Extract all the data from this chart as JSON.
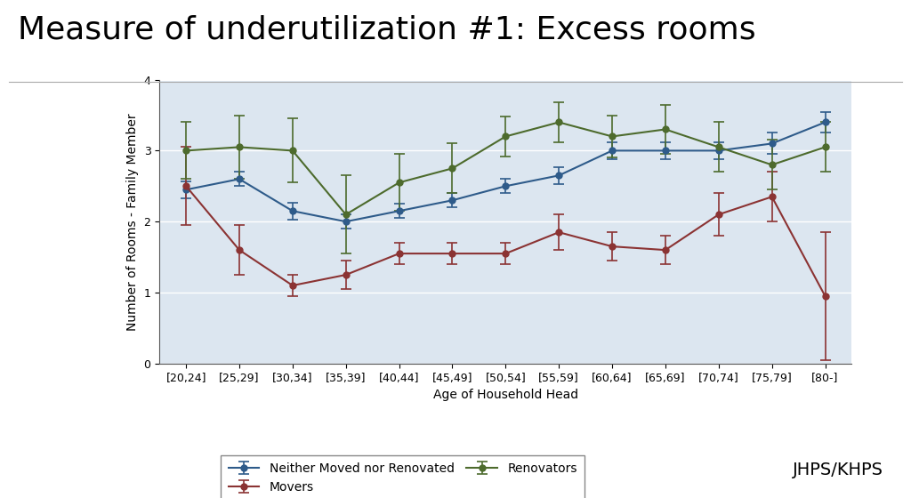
{
  "title": "Measure of underutilization #1: Excess rooms",
  "xlabel": "Age of Household Head",
  "ylabel": "Number of Rooms - Family Member",
  "categories": [
    "[20,24]",
    "[25,29]",
    "[30,34]",
    "[35,39]",
    "[40,44]",
    "[45,49]",
    "[50,54]",
    "[55,59]",
    "[60,64]",
    "[65,69]",
    "[70,74]",
    "[75,79]",
    "[80-]"
  ],
  "ylim": [
    0,
    4
  ],
  "yticks": [
    0,
    1,
    2,
    3,
    4
  ],
  "series": {
    "neither": {
      "label": "Neither Moved nor Renovated",
      "color": "#2e5b8a",
      "y": [
        2.45,
        2.6,
        2.15,
        2.0,
        2.15,
        2.3,
        2.5,
        2.65,
        3.0,
        3.0,
        3.0,
        3.1,
        3.4
      ],
      "yerr": [
        0.12,
        0.1,
        0.12,
        0.1,
        0.1,
        0.1,
        0.1,
        0.12,
        0.12,
        0.12,
        0.12,
        0.15,
        0.15
      ],
      "marker": "o"
    },
    "movers": {
      "label": "Movers",
      "color": "#8b3333",
      "y": [
        2.5,
        1.6,
        1.1,
        1.25,
        1.55,
        1.55,
        1.55,
        1.85,
        1.65,
        1.6,
        2.1,
        2.35,
        0.95
      ],
      "yerr": [
        0.55,
        0.35,
        0.15,
        0.2,
        0.15,
        0.15,
        0.15,
        0.25,
        0.2,
        0.2,
        0.3,
        0.35,
        0.9
      ],
      "marker": "o"
    },
    "renovators": {
      "label": "Renovators",
      "color": "#4d6b2d",
      "y": [
        3.0,
        3.05,
        3.0,
        2.1,
        2.55,
        2.75,
        3.2,
        3.4,
        3.2,
        3.3,
        3.05,
        2.8,
        3.05
      ],
      "yerr": [
        0.4,
        0.45,
        0.45,
        0.55,
        0.4,
        0.35,
        0.28,
        0.28,
        0.3,
        0.35,
        0.35,
        0.35,
        0.35
      ],
      "marker": "o"
    }
  },
  "fig_bg_color": "#ffffff",
  "plot_bg_color": "#dce6f0",
  "title_fontsize": 26,
  "axis_fontsize": 10,
  "tick_fontsize": 9,
  "legend_fontsize": 10,
  "watermark": "JHPS/KHPS",
  "watermark_fontsize": 14
}
